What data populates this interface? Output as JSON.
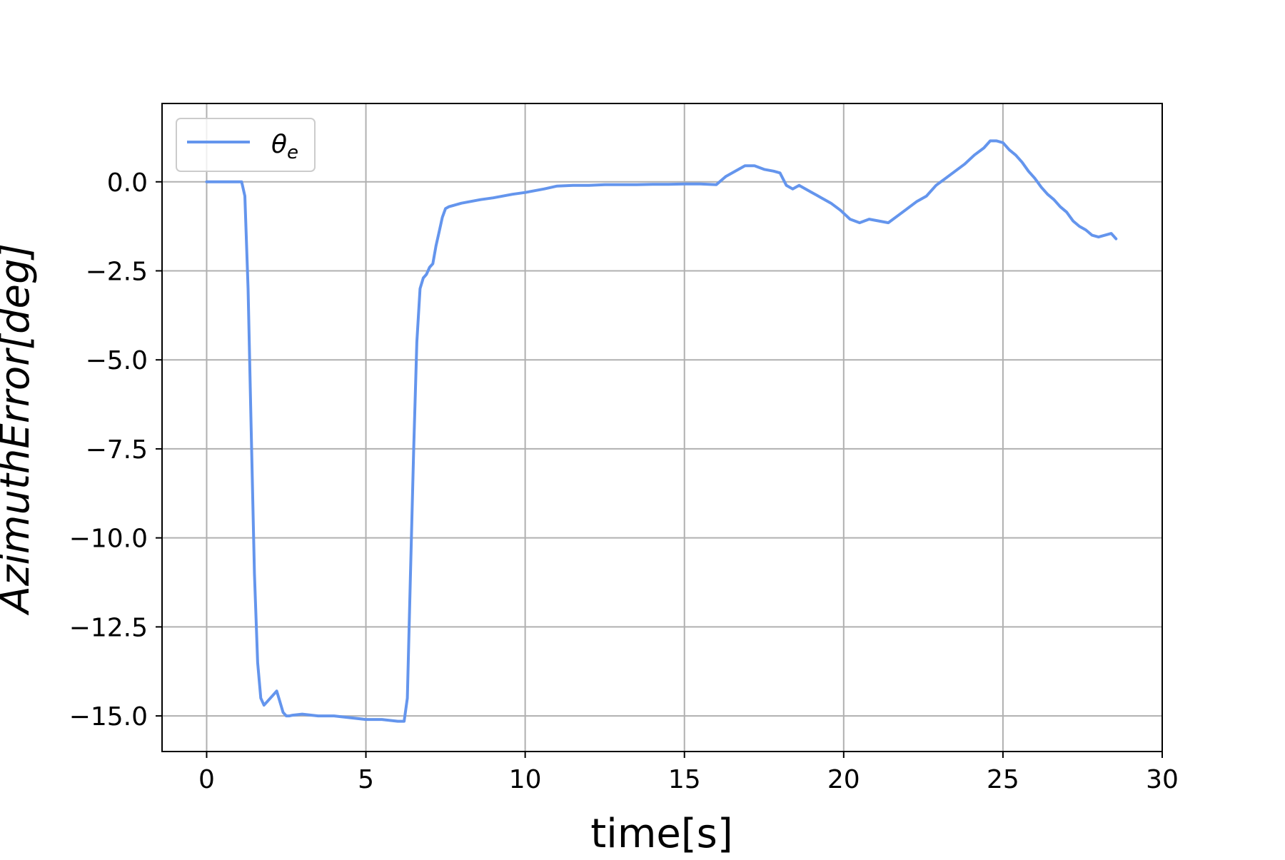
{
  "chart_data": {
    "type": "line",
    "title": "",
    "xlabel": "time[s]",
    "ylabel": "AzimuthError[deg]",
    "xlim": [
      -1.4,
      30
    ],
    "ylim": [
      -16.0,
      2.2
    ],
    "xticks": [
      0,
      5,
      10,
      15,
      20,
      25,
      30
    ],
    "xtick_labels": [
      "0",
      "5",
      "10",
      "15",
      "20",
      "25",
      "30"
    ],
    "yticks": [
      0.0,
      -2.5,
      -5.0,
      -7.5,
      -10.0,
      -12.5,
      -15.0
    ],
    "ytick_labels": [
      "0.0",
      "−2.5",
      "−5.0",
      "−7.5",
      "−10.0",
      "−12.5",
      "−15.0"
    ],
    "grid": true,
    "legend_position": "top-left",
    "series": [
      {
        "name": "θe",
        "color": "#6495ED",
        "x": [
          0.0,
          0.5,
          1.0,
          1.1,
          1.2,
          1.3,
          1.4,
          1.5,
          1.6,
          1.7,
          1.8,
          1.9,
          2.0,
          2.1,
          2.2,
          2.3,
          2.4,
          2.5,
          2.6,
          2.7,
          3.0,
          3.5,
          4.0,
          4.5,
          5.0,
          5.5,
          6.0,
          6.2,
          6.3,
          6.4,
          6.5,
          6.6,
          6.7,
          6.8,
          6.9,
          7.0,
          7.1,
          7.2,
          7.3,
          7.4,
          7.5,
          7.6,
          7.8,
          8.0,
          8.3,
          8.6,
          9.0,
          9.3,
          9.6,
          10.0,
          10.3,
          10.6,
          11.0,
          11.5,
          12.0,
          12.5,
          13.0,
          13.5,
          14.0,
          14.5,
          15.0,
          15.5,
          16.0,
          16.3,
          16.6,
          16.9,
          17.2,
          17.5,
          17.8,
          18.0,
          18.2,
          18.4,
          18.6,
          18.8,
          19.0,
          19.3,
          19.6,
          19.9,
          20.2,
          20.5,
          20.8,
          21.1,
          21.4,
          21.7,
          22.0,
          22.3,
          22.6,
          22.9,
          23.2,
          23.5,
          23.8,
          24.1,
          24.4,
          24.6,
          24.8,
          25.0,
          25.2,
          25.4,
          25.6,
          25.8,
          26.0,
          26.2,
          26.4,
          26.6,
          26.8,
          27.0,
          27.2,
          27.4,
          27.6,
          27.8,
          28.0,
          28.2,
          28.4,
          28.55
        ],
        "y": [
          0.0,
          0.0,
          0.0,
          0.0,
          -0.4,
          -3.0,
          -7.0,
          -11.0,
          -13.5,
          -14.5,
          -14.7,
          -14.6,
          -14.5,
          -14.4,
          -14.3,
          -14.6,
          -14.9,
          -15.0,
          -15.0,
          -14.98,
          -14.95,
          -15.0,
          -15.0,
          -15.05,
          -15.1,
          -15.1,
          -15.15,
          -15.15,
          -14.5,
          -11.0,
          -7.5,
          -4.5,
          -3.0,
          -2.7,
          -2.6,
          -2.4,
          -2.3,
          -1.8,
          -1.4,
          -1.0,
          -0.75,
          -0.7,
          -0.65,
          -0.6,
          -0.55,
          -0.5,
          -0.45,
          -0.4,
          -0.35,
          -0.3,
          -0.25,
          -0.2,
          -0.12,
          -0.1,
          -0.1,
          -0.08,
          -0.08,
          -0.08,
          -0.07,
          -0.07,
          -0.06,
          -0.06,
          -0.08,
          0.15,
          0.3,
          0.45,
          0.45,
          0.35,
          0.3,
          0.25,
          -0.1,
          -0.2,
          -0.1,
          -0.2,
          -0.3,
          -0.45,
          -0.6,
          -0.8,
          -1.05,
          -1.15,
          -1.05,
          -1.1,
          -1.15,
          -0.95,
          -0.75,
          -0.55,
          -0.4,
          -0.1,
          0.1,
          0.3,
          0.5,
          0.75,
          0.95,
          1.15,
          1.15,
          1.1,
          0.9,
          0.75,
          0.55,
          0.3,
          0.1,
          -0.15,
          -0.35,
          -0.5,
          -0.7,
          -0.85,
          -1.1,
          -1.25,
          -1.35,
          -1.5,
          -1.55,
          -1.5,
          -1.45,
          -1.6
        ]
      }
    ]
  }
}
